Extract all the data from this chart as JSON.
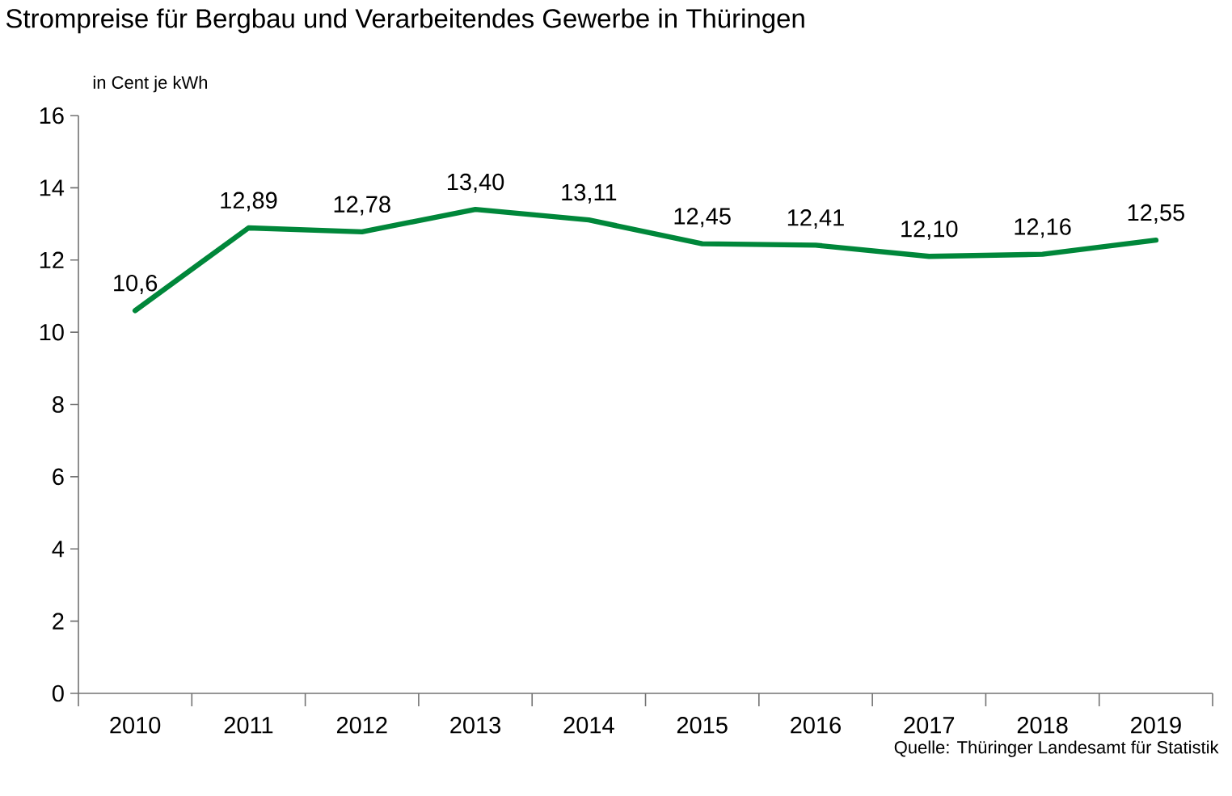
{
  "chart_data": {
    "type": "line",
    "title": "Strompreise für Bergbau und Verarbeitendes Gewerbe in Thüringen",
    "ylabel": "in Cent je kWh",
    "categories": [
      "2010",
      "2011",
      "2012",
      "2013",
      "2014",
      "2015",
      "2016",
      "2017",
      "2018",
      "2019"
    ],
    "series": [
      {
        "color": "#00873a",
        "values": [
          10.6,
          12.89,
          12.78,
          13.4,
          13.11,
          12.45,
          12.41,
          12.1,
          12.16,
          12.55
        ],
        "value_labels": [
          "10,6",
          "12,89",
          "12,78",
          "13,40",
          "13,11",
          "12,45",
          "12,41",
          "12,10",
          "12,16",
          "12,55"
        ]
      }
    ],
    "ylim": [
      0,
      16
    ],
    "yticks": [
      0,
      2,
      4,
      6,
      8,
      10,
      12,
      14,
      16
    ],
    "grid": false,
    "marker": "none",
    "line_style": "solid",
    "annotations": [
      "Quelle: Thüringer Landesamt für Statistik"
    ]
  }
}
